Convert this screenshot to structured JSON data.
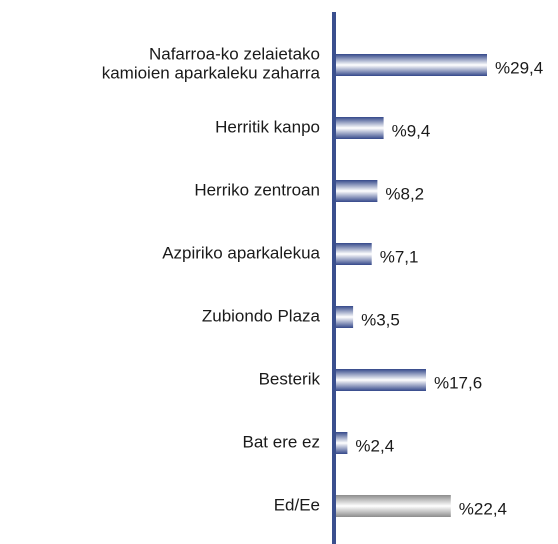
{
  "chart_data": {
    "type": "hbar",
    "categories": [
      "Nafarroa-ko zelaietako\nkamioien aparkaleku zaharra",
      "Herritik kanpo",
      "Herriko zentroan",
      "Azpiriko aparkalekua",
      "Zubiondo Plaza",
      "Besterik",
      "Bat ere ez",
      "Ed/Ee"
    ],
    "values": [
      29.4,
      9.4,
      8.2,
      7.1,
      3.5,
      17.6,
      2.4,
      22.4
    ],
    "value_labels": [
      "%29,4",
      "%9,4",
      "%8,2",
      "%7,1",
      "%3,5",
      "%17,6",
      "%2,4",
      "%22,4"
    ],
    "colors": [
      "#34488a",
      "#34488a",
      "#34488a",
      "#34488a",
      "#34488a",
      "#34488a",
      "#34488a",
      "#8c8c8c"
    ]
  }
}
